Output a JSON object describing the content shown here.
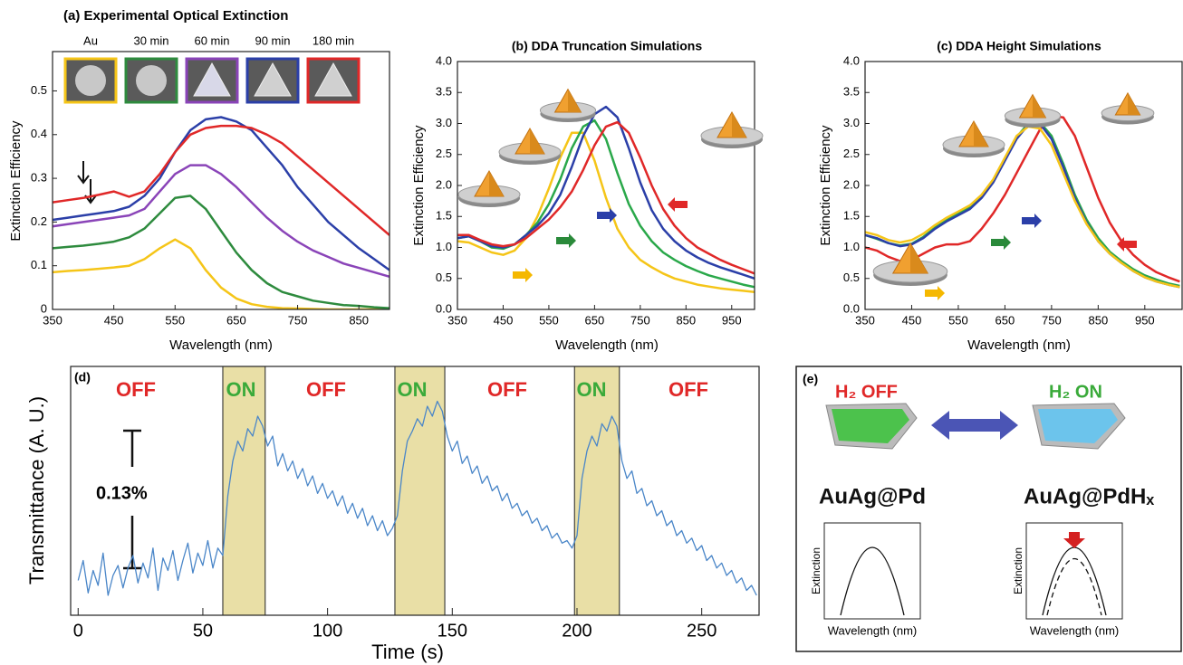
{
  "chart_data": [
    {
      "type": "line",
      "title": "(a)  Experimental Optical Extinction",
      "x_label": "Wavelength (nm)",
      "y_label": "Extinction Efficiency",
      "xlim": [
        350,
        900
      ],
      "ylim": [
        0,
        0.59
      ],
      "xticks": [
        350,
        450,
        550,
        650,
        750,
        850
      ],
      "yticks": [
        0,
        0.1,
        0.2,
        0.3,
        0.4,
        0.5
      ],
      "x": [
        350,
        375,
        400,
        425,
        450,
        475,
        500,
        525,
        550,
        575,
        600,
        625,
        650,
        675,
        700,
        725,
        750,
        775,
        800,
        825,
        850,
        875,
        900
      ],
      "series": [
        {
          "name": "Au",
          "color": "#f5c518",
          "values": [
            0.085,
            0.088,
            0.09,
            0.093,
            0.096,
            0.1,
            0.115,
            0.14,
            0.16,
            0.14,
            0.09,
            0.05,
            0.025,
            0.012,
            0.006,
            0.003,
            0.002,
            0.001,
            0,
            0,
            0,
            0,
            0
          ]
        },
        {
          "name": "30 min",
          "color": "#2e8b3e",
          "values": [
            0.14,
            0.143,
            0.146,
            0.15,
            0.155,
            0.165,
            0.185,
            0.22,
            0.255,
            0.26,
            0.23,
            0.18,
            0.13,
            0.09,
            0.06,
            0.04,
            0.03,
            0.02,
            0.015,
            0.01,
            0.008,
            0.005,
            0.003
          ]
        },
        {
          "name": "60 min",
          "color": "#8a44b8",
          "values": [
            0.19,
            0.195,
            0.2,
            0.205,
            0.21,
            0.215,
            0.23,
            0.27,
            0.31,
            0.33,
            0.33,
            0.31,
            0.28,
            0.245,
            0.21,
            0.18,
            0.155,
            0.135,
            0.12,
            0.105,
            0.095,
            0.085,
            0.075
          ]
        },
        {
          "name": "90 min",
          "color": "#2b3fa8",
          "values": [
            0.205,
            0.21,
            0.215,
            0.22,
            0.225,
            0.235,
            0.26,
            0.3,
            0.36,
            0.41,
            0.435,
            0.44,
            0.43,
            0.41,
            0.37,
            0.33,
            0.28,
            0.24,
            0.2,
            0.17,
            0.14,
            0.115,
            0.09
          ]
        },
        {
          "name": "180 min",
          "color": "#e02828",
          "values": [
            0.245,
            0.25,
            0.255,
            0.262,
            0.27,
            0.258,
            0.27,
            0.31,
            0.36,
            0.4,
            0.415,
            0.42,
            0.42,
            0.415,
            0.4,
            0.38,
            0.35,
            0.32,
            0.29,
            0.26,
            0.23,
            0.2,
            0.17
          ]
        }
      ]
    },
    {
      "type": "line",
      "title": "(b) DDA Truncation Simulations",
      "x_label": "Wavelength (nm)",
      "y_label": "Extinction Efficiency",
      "xlim": [
        350,
        1000
      ],
      "ylim": [
        0,
        4
      ],
      "xticks": [
        350,
        450,
        550,
        650,
        750,
        850,
        950
      ],
      "yticks": [
        {
          "value": 0,
          "label": "0.0"
        },
        0.5,
        {
          "value": 1,
          "label": "1.0"
        },
        1.5,
        {
          "value": 2,
          "label": "2.0"
        },
        2.5,
        {
          "value": 3,
          "label": "3.0"
        },
        3.5,
        {
          "value": 4,
          "label": "4.0"
        }
      ],
      "x": [
        350,
        375,
        400,
        425,
        450,
        475,
        500,
        525,
        550,
        575,
        600,
        625,
        650,
        675,
        700,
        725,
        750,
        775,
        800,
        825,
        850,
        875,
        900,
        925,
        950,
        975,
        1000
      ],
      "series": [
        {
          "color": "#f5c518",
          "values": [
            1.1,
            1.08,
            1.0,
            0.92,
            0.88,
            0.95,
            1.15,
            1.5,
            1.95,
            2.45,
            2.85,
            2.85,
            2.4,
            1.8,
            1.3,
            1.0,
            0.8,
            0.68,
            0.58,
            0.5,
            0.45,
            0.4,
            0.37,
            0.34,
            0.32,
            0.3,
            0.28
          ]
        },
        {
          "color": "#2aa84a",
          "values": [
            1.15,
            1.18,
            1.1,
            1.0,
            0.98,
            1.05,
            1.2,
            1.4,
            1.7,
            2.1,
            2.6,
            2.95,
            3.05,
            2.75,
            2.2,
            1.7,
            1.35,
            1.1,
            0.92,
            0.8,
            0.7,
            0.62,
            0.55,
            0.5,
            0.45,
            0.4,
            0.36
          ]
        },
        {
          "color": "#2b3fa8",
          "values": [
            1.15,
            1.18,
            1.1,
            1.02,
            1.0,
            1.05,
            1.2,
            1.35,
            1.55,
            1.85,
            2.3,
            2.8,
            3.15,
            3.27,
            3.1,
            2.6,
            2.05,
            1.6,
            1.3,
            1.1,
            0.95,
            0.84,
            0.75,
            0.68,
            0.62,
            0.56,
            0.5
          ]
        },
        {
          "color": "#e02828",
          "values": [
            1.2,
            1.2,
            1.12,
            1.05,
            1.02,
            1.05,
            1.15,
            1.3,
            1.45,
            1.65,
            1.9,
            2.25,
            2.65,
            2.95,
            3.02,
            2.85,
            2.45,
            2.0,
            1.62,
            1.35,
            1.15,
            1.0,
            0.9,
            0.8,
            0.72,
            0.65,
            0.58
          ]
        }
      ]
    },
    {
      "type": "line",
      "title": "(c) DDA Height Simulations",
      "x_label": "Wavelength (nm)",
      "y_label": "Extinction Efficiency",
      "xlim": [
        350,
        1030
      ],
      "ylim": [
        0,
        4
      ],
      "xticks": [
        350,
        450,
        550,
        650,
        750,
        850,
        950
      ],
      "yticks": [
        {
          "value": 0,
          "label": "0.0"
        },
        0.5,
        {
          "value": 1,
          "label": "1.0"
        },
        1.5,
        {
          "value": 2,
          "label": "2.0"
        },
        2.5,
        {
          "value": 3,
          "label": "3.0"
        },
        3.5,
        {
          "value": 4,
          "label": "4.0"
        }
      ],
      "x": [
        350,
        375,
        400,
        425,
        450,
        475,
        500,
        525,
        550,
        575,
        600,
        625,
        650,
        675,
        700,
        725,
        750,
        775,
        800,
        825,
        850,
        875,
        900,
        925,
        950,
        975,
        1000,
        1025
      ],
      "series": [
        {
          "color": "#e02828",
          "values": [
            1.0,
            0.95,
            0.85,
            0.78,
            0.8,
            0.9,
            1.0,
            1.05,
            1.05,
            1.1,
            1.3,
            1.55,
            1.85,
            2.2,
            2.55,
            2.9,
            3.12,
            3.1,
            2.8,
            2.3,
            1.8,
            1.4,
            1.1,
            0.88,
            0.72,
            0.6,
            0.52,
            0.45
          ]
        },
        {
          "color": "#2aa84a",
          "values": [
            1.2,
            1.14,
            1.07,
            1.03,
            1.06,
            1.17,
            1.32,
            1.44,
            1.55,
            1.65,
            1.83,
            2.08,
            2.42,
            2.78,
            3.0,
            3.02,
            2.8,
            2.35,
            1.85,
            1.45,
            1.15,
            0.93,
            0.78,
            0.65,
            0.55,
            0.48,
            0.42,
            0.38
          ]
        },
        {
          "color": "#2b3fa8",
          "values": [
            1.2,
            1.15,
            1.07,
            1.02,
            1.05,
            1.15,
            1.3,
            1.42,
            1.52,
            1.62,
            1.8,
            2.05,
            2.4,
            2.75,
            2.98,
            3.0,
            2.75,
            2.3,
            1.8,
            1.4,
            1.1,
            0.9,
            0.75,
            0.62,
            0.52,
            0.45,
            0.4,
            0.36
          ]
        },
        {
          "color": "#f5c518",
          "values": [
            1.25,
            1.2,
            1.12,
            1.08,
            1.12,
            1.22,
            1.36,
            1.48,
            1.58,
            1.68,
            1.85,
            2.1,
            2.45,
            2.8,
            2.95,
            2.92,
            2.65,
            2.2,
            1.75,
            1.38,
            1.1,
            0.9,
            0.75,
            0.62,
            0.52,
            0.45,
            0.4,
            0.36
          ]
        }
      ]
    },
    {
      "type": "line",
      "panel_label": "(d)",
      "x_label": "Time (s)",
      "y_label": "Transmittance (A. U.)",
      "xlim": [
        -3,
        273
      ],
      "ylim": [
        0,
        100
      ],
      "xticks": [
        0,
        50,
        100,
        150,
        200,
        250
      ],
      "shaded_regions": [
        [
          58,
          75
        ],
        [
          127,
          147
        ],
        [
          199,
          217
        ]
      ],
      "shade_color": "#e9dfa6",
      "annotations": [
        "OFF",
        "ON",
        "OFF",
        "ON",
        "OFF",
        "ON",
        "OFF"
      ],
      "scale_label": "0.13%",
      "x": [
        0,
        2,
        4,
        6,
        8,
        10,
        12,
        14,
        16,
        18,
        20,
        22,
        24,
        26,
        28,
        30,
        32,
        34,
        36,
        38,
        40,
        42,
        44,
        46,
        48,
        50,
        52,
        54,
        56,
        58,
        60,
        62,
        64,
        66,
        68,
        70,
        72,
        74,
        76,
        78,
        80,
        82,
        84,
        86,
        88,
        90,
        92,
        94,
        96,
        98,
        100,
        102,
        104,
        106,
        108,
        110,
        112,
        114,
        116,
        118,
        120,
        122,
        124,
        126,
        128,
        130,
        132,
        134,
        136,
        138,
        140,
        142,
        144,
        146,
        148,
        150,
        152,
        154,
        156,
        158,
        160,
        162,
        164,
        166,
        168,
        170,
        172,
        174,
        176,
        178,
        180,
        182,
        184,
        186,
        188,
        190,
        192,
        194,
        196,
        198,
        200,
        202,
        204,
        206,
        208,
        210,
        212,
        214,
        216,
        218,
        220,
        222,
        224,
        226,
        228,
        230,
        232,
        234,
        236,
        238,
        240,
        242,
        244,
        246,
        248,
        250,
        252,
        254,
        256,
        258,
        260,
        262,
        264,
        266,
        268,
        270,
        272
      ],
      "series": [
        {
          "color": "#4a86c8",
          "values": [
            14,
            22,
            9,
            18,
            12,
            25,
            8,
            16,
            20,
            11,
            19,
            24,
            13,
            21,
            15,
            27,
            10,
            23,
            18,
            26,
            14,
            22,
            29,
            17,
            25,
            20,
            30,
            19,
            27,
            24,
            48,
            62,
            70,
            66,
            75,
            72,
            80,
            76,
            68,
            72,
            60,
            65,
            58,
            62,
            55,
            59,
            52,
            56,
            49,
            53,
            47,
            50,
            44,
            48,
            41,
            45,
            39,
            43,
            36,
            40,
            34,
            38,
            32,
            35,
            40,
            58,
            70,
            74,
            79,
            76,
            84,
            80,
            86,
            82,
            72,
            66,
            70,
            61,
            64,
            57,
            60,
            53,
            56,
            50,
            52,
            46,
            49,
            43,
            45,
            40,
            42,
            37,
            39,
            34,
            36,
            31,
            33,
            29,
            30,
            27,
            32,
            55,
            66,
            72,
            68,
            77,
            74,
            80,
            76,
            62,
            55,
            58,
            49,
            51,
            44,
            46,
            40,
            42,
            36,
            38,
            32,
            34,
            29,
            31,
            26,
            28,
            22,
            24,
            19,
            21,
            16,
            18,
            13,
            15,
            10,
            12,
            8
          ]
        }
      ]
    }
  ],
  "diagram": {
    "label": "(e)",
    "left_state": "H₂ OFF",
    "right_state": "H₂ ON",
    "left_material": "AuAg@Pd",
    "right_material": "AuAg@PdHₓ",
    "y_label": "Extinction",
    "x_label": "Wavelength (nm)"
  }
}
